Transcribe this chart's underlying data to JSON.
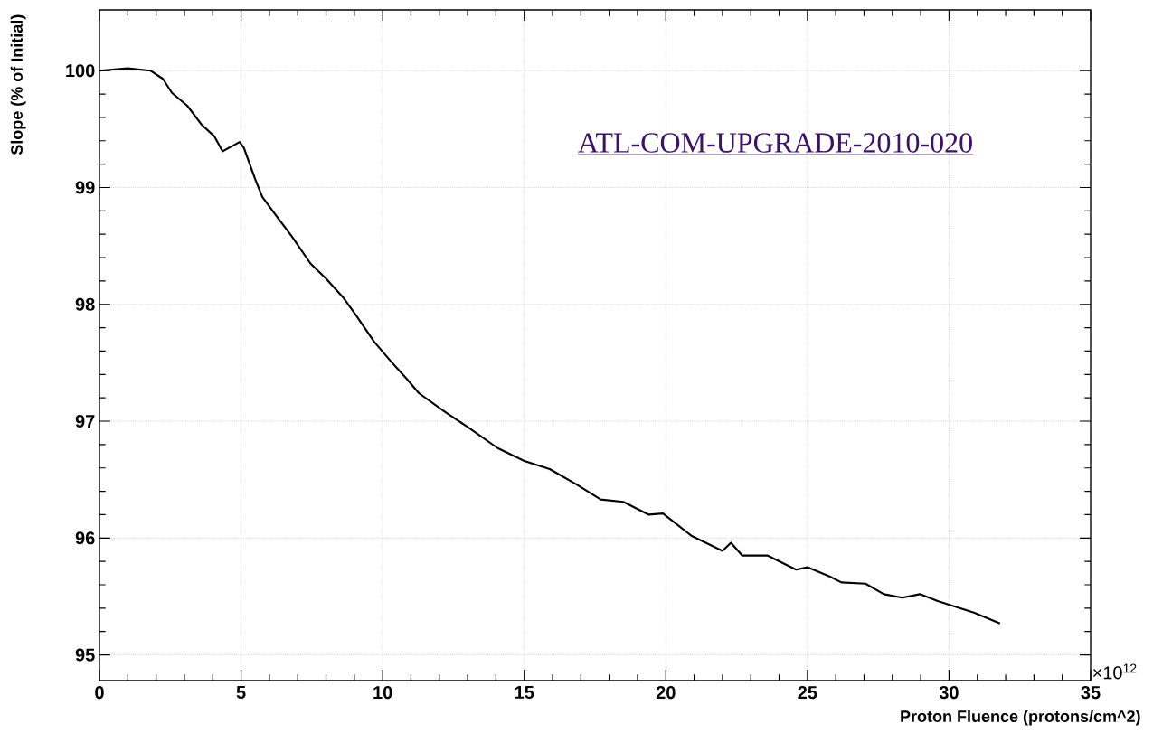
{
  "chart_data": {
    "type": "line",
    "xlabel": "Proton Fluence (protons/cm^2)",
    "ylabel": "Slope (% of Initial)",
    "annotations": [
      "ATL-COM-UPGRADE-2010-020",
      "×10$^{12}$"
    ],
    "x": [
      0,
      1,
      1.8,
      2.24,
      2.56,
      3.1,
      3.6,
      4.05,
      4.35,
      4.95,
      5.1,
      5.5,
      5.75,
      6.3,
      6.8,
      7.45,
      8.0,
      8.6,
      9.05,
      9.7,
      10.3,
      10.86,
      11.28,
      12.14,
      13.0,
      14.06,
      15.0,
      15.9,
      16.84,
      17.7,
      18.5,
      19.4,
      19.9,
      20.9,
      22.0,
      22.3,
      22.7,
      23.6,
      24.6,
      25.0,
      25.8,
      26.2,
      27.05,
      27.7,
      28.35,
      28.97,
      29.6,
      30.0,
      30.9,
      31.3,
      31.8
    ],
    "series": [
      {
        "color": "#000000",
        "values": [
          100.0,
          100.02,
          100.0,
          99.93,
          99.81,
          99.7,
          99.54,
          99.44,
          99.31,
          99.39,
          99.34,
          99.07,
          98.92,
          98.74,
          98.58,
          98.35,
          98.22,
          98.06,
          97.91,
          97.68,
          97.51,
          97.36,
          97.24,
          97.09,
          96.95,
          96.77,
          96.66,
          96.59,
          96.46,
          96.33,
          96.31,
          96.2,
          96.21,
          96.02,
          95.89,
          95.96,
          95.85,
          95.85,
          95.73,
          95.75,
          95.67,
          95.62,
          95.61,
          95.52,
          95.49,
          95.52,
          95.46,
          95.43,
          95.36,
          95.32,
          95.27
        ]
      }
    ],
    "xlim": [
      0,
      35
    ],
    "ylim": [
      94.78,
      100.52
    ],
    "xticks": [
      0,
      5,
      10,
      15,
      20,
      25,
      30,
      35
    ],
    "yticks": [
      95,
      96,
      97,
      98,
      99,
      100
    ],
    "grid": true
  }
}
